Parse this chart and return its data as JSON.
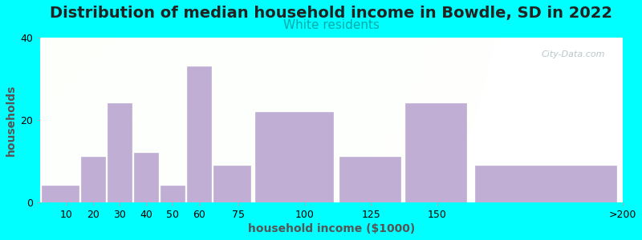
{
  "title": "Distribution of median household income in Bowdle, SD in 2022",
  "subtitle": "White residents",
  "xlabel": "household income ($1000)",
  "ylabel": "households",
  "background_outer": "#00FFFF",
  "bar_color": "#c0aed4",
  "bar_edge_color": "#c0aed4",
  "bin_edges": [
    0,
    15,
    25,
    35,
    45,
    55,
    65,
    80,
    112,
    137,
    162,
    220
  ],
  "tick_positions": [
    10,
    20,
    30,
    40,
    50,
    60,
    75,
    100,
    125,
    150,
    220
  ],
  "tick_labels": [
    "10",
    "20",
    "30",
    "40",
    "50",
    "60",
    "75",
    "100",
    "125",
    "150",
    ">200"
  ],
  "values": [
    4,
    11,
    24,
    12,
    4,
    33,
    9,
    22,
    11,
    24,
    9
  ],
  "ylim": [
    0,
    40
  ],
  "yticks": [
    0,
    20,
    40
  ],
  "title_fontsize": 14,
  "subtitle_fontsize": 11,
  "axis_label_fontsize": 10,
  "watermark_text": "City-Data.com",
  "watermark_color": "#a8b8c0",
  "title_color": "#222222",
  "subtitle_color": "#00AAAA",
  "tick_color": "#333333",
  "xlabel_color": "#555555",
  "ylabel_color": "#555555"
}
